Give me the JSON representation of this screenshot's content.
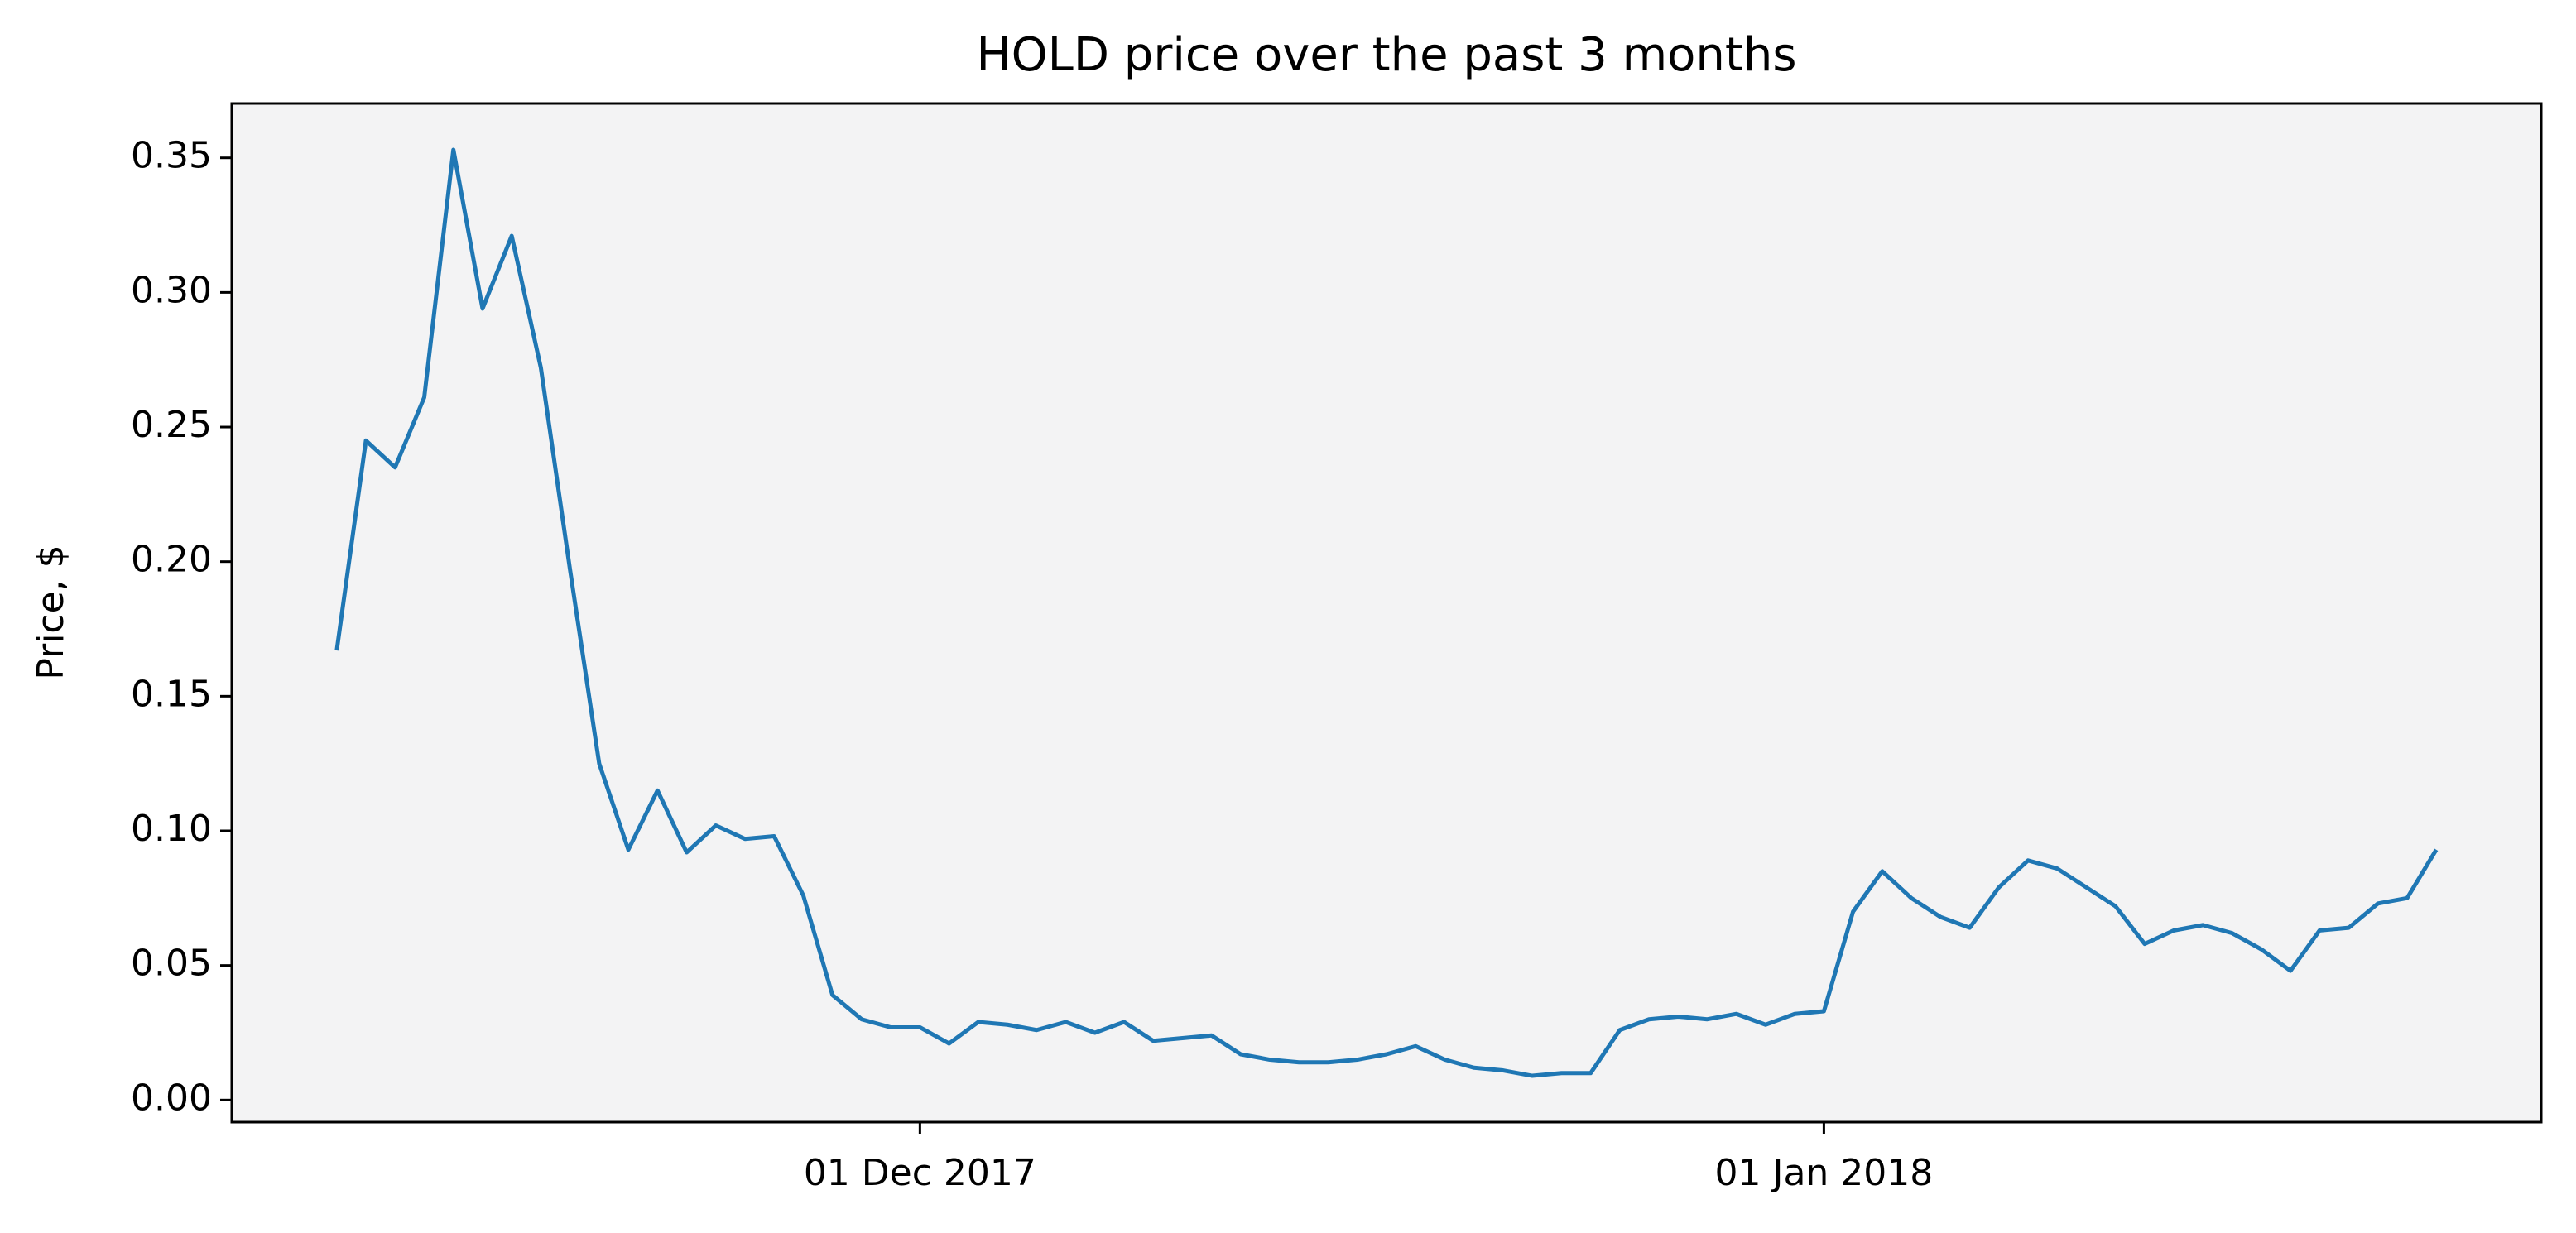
{
  "chart_data": {
    "type": "line",
    "title": "HOLD price over the past 3 months",
    "ylabel": "Price, $",
    "x": [
      "2017-11-11",
      "2017-11-12",
      "2017-11-13",
      "2017-11-14",
      "2017-11-15",
      "2017-11-16",
      "2017-11-17",
      "2017-11-18",
      "2017-11-19",
      "2017-11-20",
      "2017-11-21",
      "2017-11-22",
      "2017-11-23",
      "2017-11-24",
      "2017-11-25",
      "2017-11-26",
      "2017-11-27",
      "2017-11-28",
      "2017-11-29",
      "2017-11-30",
      "2017-12-01",
      "2017-12-02",
      "2017-12-03",
      "2017-12-04",
      "2017-12-05",
      "2017-12-06",
      "2017-12-07",
      "2017-12-08",
      "2017-12-09",
      "2017-12-10",
      "2017-12-11",
      "2017-12-12",
      "2017-12-13",
      "2017-12-14",
      "2017-12-15",
      "2017-12-16",
      "2017-12-17",
      "2017-12-18",
      "2017-12-19",
      "2017-12-20",
      "2017-12-21",
      "2017-12-22",
      "2017-12-23",
      "2017-12-24",
      "2017-12-25",
      "2017-12-26",
      "2017-12-27",
      "2017-12-28",
      "2017-12-29",
      "2017-12-30",
      "2017-12-31",
      "2018-01-01",
      "2018-01-02",
      "2018-01-03",
      "2018-01-04",
      "2018-01-05",
      "2018-01-06",
      "2018-01-07",
      "2018-01-08",
      "2018-01-09",
      "2018-01-10",
      "2018-01-11",
      "2018-01-12",
      "2018-01-13",
      "2018-01-14",
      "2018-01-15",
      "2018-01-16",
      "2018-01-17",
      "2018-01-18",
      "2018-01-19",
      "2018-01-20",
      "2018-01-21",
      "2018-01-22"
    ],
    "series": [
      {
        "color": "#1f77b4",
        "values": [
          0.167,
          0.245,
          0.235,
          0.261,
          0.353,
          0.294,
          0.321,
          0.272,
          0.197,
          0.125,
          0.093,
          0.115,
          0.092,
          0.102,
          0.097,
          0.098,
          0.076,
          0.039,
          0.03,
          0.027,
          0.027,
          0.021,
          0.029,
          0.028,
          0.026,
          0.029,
          0.025,
          0.029,
          0.022,
          0.023,
          0.024,
          0.017,
          0.015,
          0.014,
          0.014,
          0.015,
          0.017,
          0.02,
          0.015,
          0.012,
          0.011,
          0.009,
          0.01,
          0.01,
          0.026,
          0.03,
          0.031,
          0.03,
          0.032,
          0.028,
          0.032,
          0.033,
          0.07,
          0.085,
          0.075,
          0.068,
          0.064,
          0.079,
          0.089,
          0.086,
          0.079,
          0.072,
          0.058,
          0.063,
          0.065,
          0.062,
          0.056,
          0.048,
          0.063,
          0.064,
          0.073,
          0.075,
          0.093
        ]
      }
    ],
    "xlim": [
      "2017-11-07T09:36",
      "2018-01-25T14:24"
    ],
    "xticks": [
      {
        "value": "2017-12-01",
        "label": "01 Dec 2017"
      },
      {
        "value": "2018-01-01",
        "label": "01 Jan 2018"
      }
    ],
    "ylim": [
      -0.0082,
      0.3702
    ],
    "yticks": [
      {
        "value": 0,
        "label": "0.00"
      },
      {
        "value": 0.05,
        "label": "0.05"
      },
      {
        "value": 0.1,
        "label": "0.10"
      },
      {
        "value": 0.15,
        "label": "0.15"
      },
      {
        "value": 0.2,
        "label": "0.20"
      },
      {
        "value": 0.25,
        "label": "0.25"
      },
      {
        "value": 0.3,
        "label": "0.30"
      },
      {
        "value": 0.35,
        "label": "0.35"
      }
    ],
    "background": "#f3f3f4"
  }
}
